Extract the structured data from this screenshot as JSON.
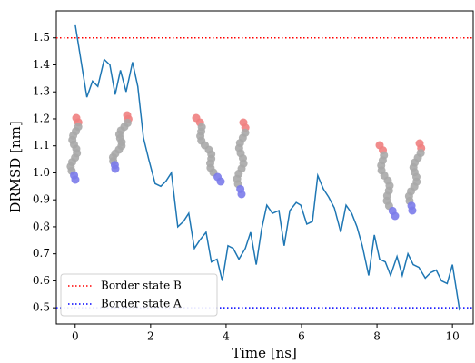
{
  "chart_data": {
    "type": "line",
    "x_label": "Time [ns]",
    "y_label": "DRMSD [nm]",
    "x": [
      0,
      0.31,
      0.46,
      0.6,
      0.77,
      0.92,
      1.06,
      1.2,
      1.35,
      1.52,
      1.66,
      1.81,
      1.95,
      2.12,
      2.27,
      2.41,
      2.55,
      2.72,
      2.87,
      3.01,
      3.16,
      3.3,
      3.47,
      3.61,
      3.76,
      3.9,
      4.05,
      4.19,
      4.34,
      4.51,
      4.65,
      4.8,
      4.94,
      5.08,
      5.23,
      5.4,
      5.54,
      5.69,
      5.86,
      5.98,
      6.14,
      6.29,
      6.43,
      6.58,
      6.72,
      6.87,
      7.04,
      7.18,
      7.33,
      7.47,
      7.61,
      7.78,
      7.93,
      8.07,
      8.22,
      8.36,
      8.53,
      8.67,
      8.82,
      8.96,
      9.11,
      9.28,
      9.42,
      9.57,
      9.71,
      9.86,
      10.0,
      10.19
    ],
    "series": [
      {
        "color": "#1f77b4",
        "values": [
          1.55,
          1.28,
          1.34,
          1.32,
          1.42,
          1.4,
          1.29,
          1.38,
          1.3,
          1.41,
          1.32,
          1.13,
          1.05,
          0.96,
          0.95,
          0.97,
          1.0,
          0.8,
          0.82,
          0.85,
          0.72,
          0.75,
          0.78,
          0.67,
          0.68,
          0.6,
          0.73,
          0.72,
          0.68,
          0.72,
          0.78,
          0.66,
          0.79,
          0.88,
          0.85,
          0.86,
          0.73,
          0.86,
          0.89,
          0.88,
          0.81,
          0.82,
          0.99,
          0.94,
          0.91,
          0.87,
          0.78,
          0.88,
          0.85,
          0.8,
          0.73,
          0.62,
          0.77,
          0.68,
          0.67,
          0.62,
          0.69,
          0.62,
          0.7,
          0.66,
          0.65,
          0.61,
          0.63,
          0.64,
          0.6,
          0.59,
          0.66,
          0.49
        ]
      }
    ],
    "reference_lines": [
      {
        "name": "Border state B",
        "value": 1.5,
        "color": "#ff0000"
      },
      {
        "name": "Border state A",
        "value": 0.5,
        "color": "#0000ff"
      }
    ],
    "xlim": [
      -0.5,
      10.55
    ],
    "ylim": [
      0.44,
      1.6
    ],
    "xticks": [
      0,
      2,
      4,
      6,
      8,
      10
    ],
    "yticks": [
      0.5,
      0.6,
      0.7,
      0.8,
      0.9,
      {
        "value": 1,
        "label": "1.0"
      },
      1.1,
      1.2,
      1.3,
      1.4,
      1.5
    ],
    "legend_position": "lower left"
  }
}
